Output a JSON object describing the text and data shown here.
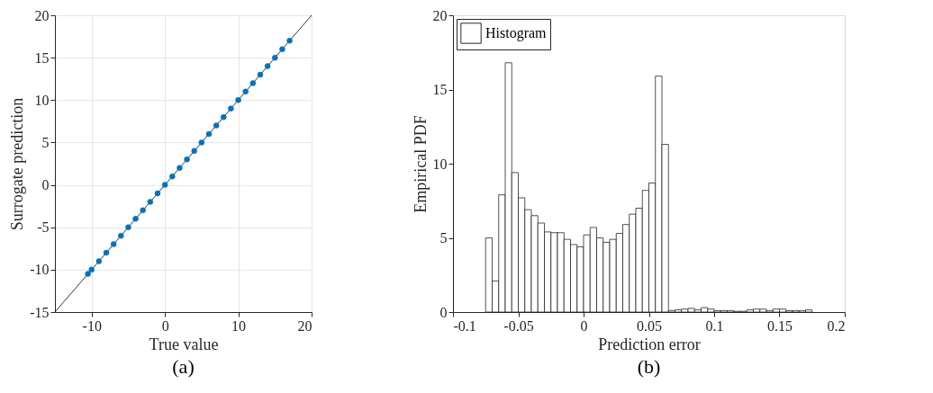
{
  "chart_data": [
    {
      "type": "scatter",
      "xlabel": "True value",
      "ylabel": "Surrogate prediction",
      "annotations": [
        "(a)"
      ],
      "xlim": [
        -15,
        20
      ],
      "ylim": [
        -15,
        20
      ],
      "xticks": [
        -10,
        0,
        10,
        20
      ],
      "yticks": [
        -15,
        -10,
        -5,
        0,
        5,
        10,
        15,
        20
      ],
      "grid": true,
      "marker": "circle",
      "series": [
        {
          "type": "line",
          "marker": "none",
          "color": "#000000",
          "x": [
            -15,
            20
          ],
          "values": [
            -15,
            20
          ]
        },
        {
          "color": "#0072bd",
          "x": [
            -10.5,
            -10,
            -9,
            -8,
            -7,
            -6,
            -5,
            -4,
            -3,
            -2,
            -1,
            0,
            1,
            2,
            3,
            4,
            5,
            6,
            7,
            8,
            9,
            10,
            11,
            12,
            13,
            14,
            15,
            16,
            17
          ],
          "values": [
            -10.5,
            -10,
            -9,
            -8,
            -7,
            -6,
            -5,
            -4,
            -3,
            -2,
            -1,
            0,
            1,
            2,
            3,
            4,
            5,
            6,
            7,
            8,
            9,
            10,
            11,
            12,
            13,
            14,
            15,
            16,
            17
          ]
        }
      ]
    },
    {
      "type": "histogram",
      "xlabel": "Prediction error",
      "ylabel": "Empirical PDF",
      "annotations": [
        "(b)"
      ],
      "xlim": [
        -0.1,
        0.2
      ],
      "ylim": [
        0,
        20
      ],
      "xticks": [
        -0.1,
        -0.05,
        0,
        0.05,
        0.1,
        0.15,
        0.2
      ],
      "yticks": [
        0,
        5,
        10,
        15,
        20
      ],
      "legend": "top left",
      "bins": [
        -0.075,
        -0.07,
        -0.065,
        -0.06,
        -0.055,
        -0.05,
        -0.045,
        -0.04,
        -0.035,
        -0.03,
        -0.025,
        -0.02,
        -0.015,
        -0.01,
        -0.005,
        0,
        0.005,
        0.01,
        0.015,
        0.02,
        0.025,
        0.03,
        0.035,
        0.04,
        0.045,
        0.05,
        0.055,
        0.06,
        0.065,
        0.07,
        0.075,
        0.08,
        0.085,
        0.09,
        0.095,
        0.1,
        0.105,
        0.11,
        0.115,
        0.12,
        0.125,
        0.13,
        0.135,
        0.14,
        0.145,
        0.15,
        0.155,
        0.16,
        0.165,
        0.17,
        0.175
      ],
      "series": [
        {
          "name": "Histogram",
          "color": "#ffffff",
          "values": [
            5.0,
            2.1,
            7.9,
            16.8,
            9.4,
            7.7,
            6.9,
            6.5,
            6.0,
            5.4,
            5.35,
            5.35,
            4.9,
            4.55,
            4.4,
            5.2,
            5.7,
            5.0,
            4.7,
            4.9,
            5.3,
            5.9,
            6.6,
            7.0,
            8.2,
            8.7,
            15.9,
            11.3,
            0.1,
            0.15,
            0.2,
            0.25,
            0.15,
            0.3,
            0.2,
            0.1,
            0.1,
            0.1,
            0.05,
            0.05,
            0.15,
            0.2,
            0.2,
            0.1,
            0.2,
            0.2,
            0.1,
            0.1,
            0.1,
            0.15
          ]
        }
      ]
    }
  ]
}
